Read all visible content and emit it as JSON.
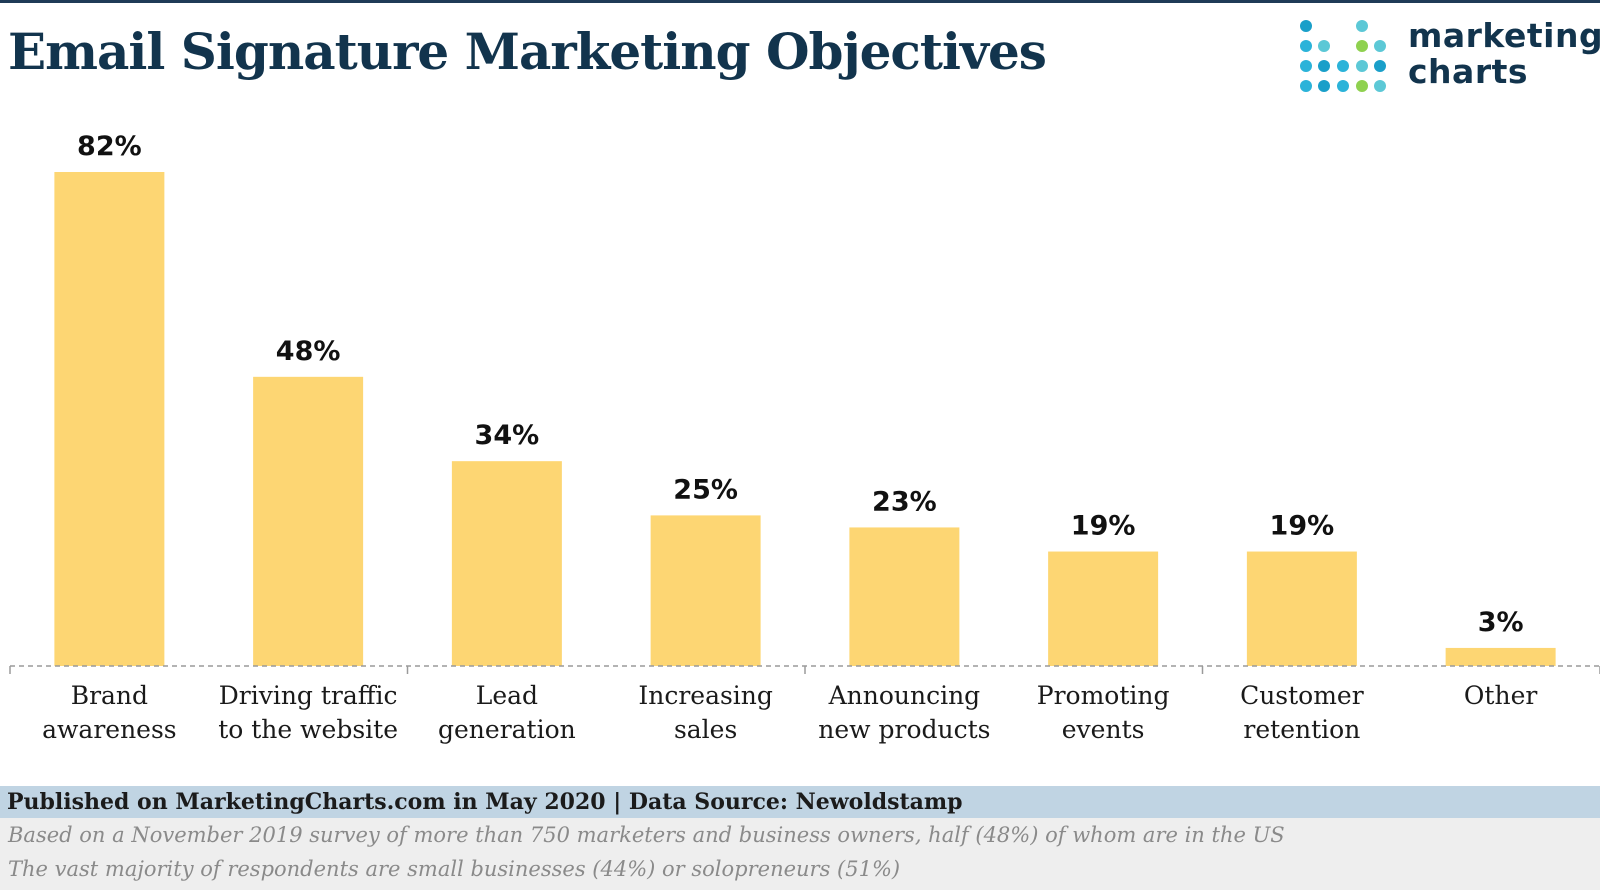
{
  "header": {
    "title": "Email Signature Marketing Objectives",
    "logo": {
      "line1": "marketing",
      "line2": "charts"
    }
  },
  "chart_data": {
    "type": "bar",
    "title": "Email Signature Marketing Objectives",
    "categories": [
      [
        "Brand",
        "awareness"
      ],
      [
        "Driving traffic",
        "to the website"
      ],
      [
        "Lead",
        "generation"
      ],
      [
        "Increasing",
        "sales"
      ],
      [
        "Announcing",
        "new products"
      ],
      [
        "Promoting",
        "events"
      ],
      [
        "Customer",
        "retention"
      ],
      [
        "Other"
      ]
    ],
    "values": [
      82,
      48,
      34,
      25,
      23,
      19,
      19,
      3
    ],
    "value_labels": [
      "82%",
      "48%",
      "34%",
      "25%",
      "23%",
      "19%",
      "19%",
      "3%"
    ],
    "ylim": [
      0,
      82
    ],
    "grid": false,
    "bar_color": "#fdd673"
  },
  "footer": {
    "source": "Published on MarketingCharts.com in May 2020 | Data Source: Newoldstamp",
    "note1": "Based on a November 2019 survey of more than 750 marketers and business owners, half (48%) of whom are in the US",
    "note2": "The vast majority of respondents are small businesses (44%) or solopreneurs (51%)"
  },
  "colors": {
    "title": "#12344d",
    "footer_bar": "#c0d4e3",
    "notes_bg": "#eeeeee",
    "logo_dots": [
      "#2bb3d9",
      "#1a9fc9",
      "#5cc8d6",
      "#8fd14f"
    ]
  }
}
